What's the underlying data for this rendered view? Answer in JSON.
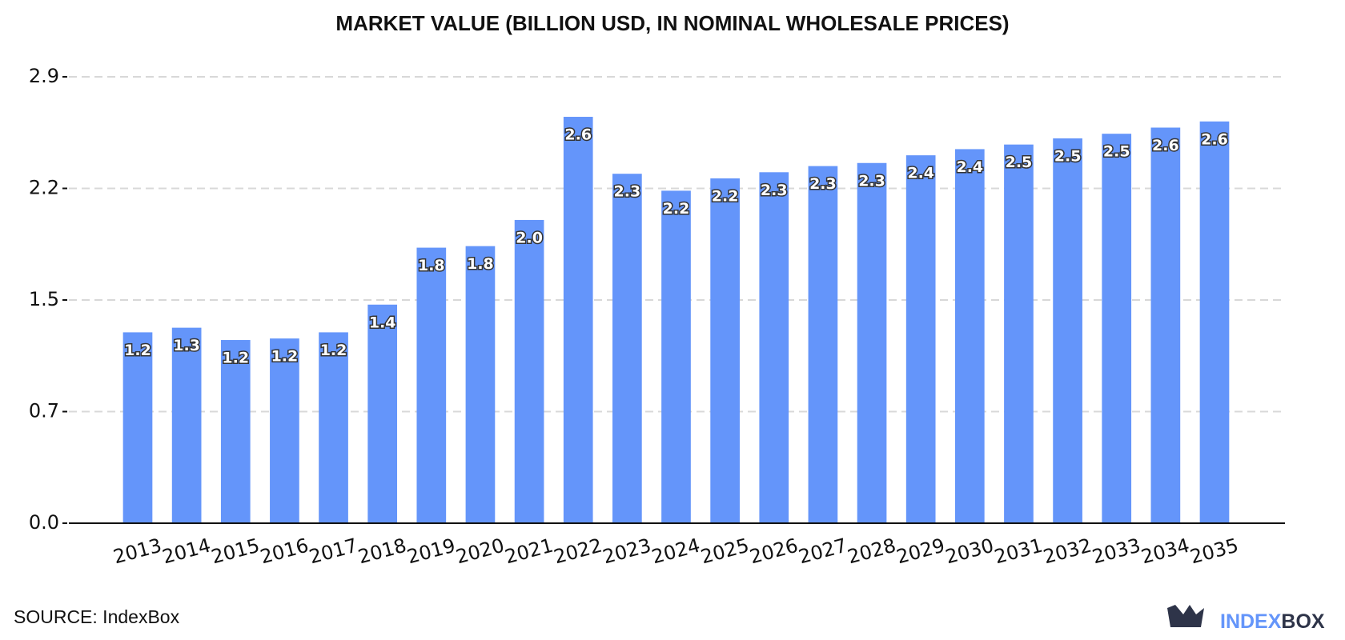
{
  "chart_data": {
    "type": "bar",
    "title": "MARKET VALUE (BILLION USD, IN NOMINAL WHOLESALE PRICES)",
    "categories": [
      "2013",
      "2014",
      "2015",
      "2016",
      "2017",
      "2018",
      "2019",
      "2020",
      "2021",
      "2022",
      "2023",
      "2024",
      "2025",
      "2026",
      "2027",
      "2028",
      "2029",
      "2030",
      "2031",
      "2032",
      "2033",
      "2034",
      "2035"
    ],
    "values": [
      1.24,
      1.27,
      1.19,
      1.2,
      1.24,
      1.42,
      1.79,
      1.8,
      1.97,
      2.64,
      2.27,
      2.16,
      2.24,
      2.28,
      2.32,
      2.34,
      2.39,
      2.43,
      2.46,
      2.5,
      2.53,
      2.57,
      2.61
    ],
    "value_labels": [
      "1.2",
      "1.3",
      "1.2",
      "1.2",
      "1.2",
      "1.4",
      "1.8",
      "1.8",
      "2.0",
      "2.6",
      "2.3",
      "2.2",
      "2.2",
      "2.3",
      "2.3",
      "2.3",
      "2.4",
      "2.4",
      "2.5",
      "2.5",
      "2.5",
      "2.6",
      "2.6"
    ],
    "color": "#6495fa",
    "ylim": [
      0,
      2.9
    ],
    "yticks": [
      {
        "value": 0,
        "label": "0.0"
      },
      {
        "value": 0.725,
        "label": "0.7"
      },
      {
        "value": 1.45,
        "label": "1.5"
      },
      {
        "value": 2.175,
        "label": "2.2"
      },
      2.9
    ],
    "grid": true
  },
  "source": "SOURCE: IndexBox",
  "logo": {
    "part1": "INDEX",
    "part2": "BOX"
  }
}
